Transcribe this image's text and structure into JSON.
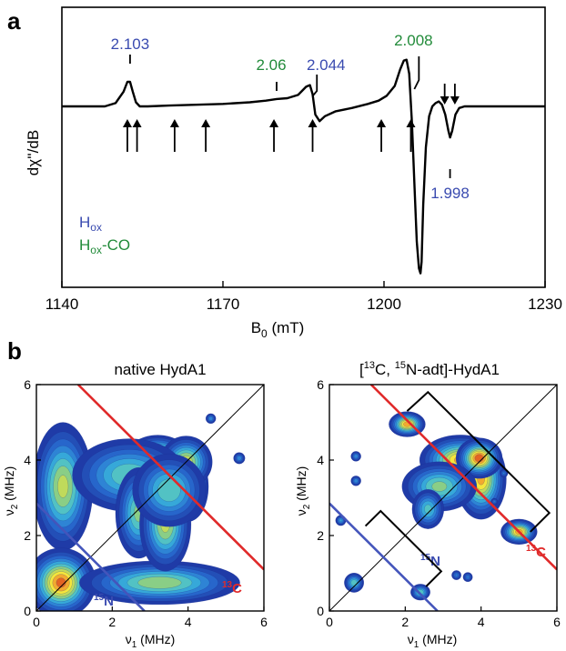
{
  "chart_data": [
    {
      "panel": "a",
      "type": "line",
      "xlabel": "B",
      "xlabel_sub": "0",
      "xlabel_unit": " (mT)",
      "ylabel": "dχ''/dB",
      "xlim": [
        1140,
        1230
      ],
      "xticks": [
        1140,
        1170,
        1200,
        1230
      ],
      "series": [
        {
          "x": [
            1140,
            1148,
            1150,
            1151.5,
            1152.2,
            1152.7,
            1153.2,
            1153.8,
            1154.5,
            1156,
            1160,
            1165,
            1170,
            1175,
            1178,
            1180,
            1182,
            1184,
            1185.5,
            1186.2,
            1186.7,
            1187.2,
            1188,
            1189,
            1191,
            1194,
            1197,
            1199,
            1200.5,
            1202,
            1203,
            1203.7,
            1204.2,
            1204.7,
            1205.2,
            1205.7,
            1206.1,
            1206.5,
            1206.8,
            1207.0,
            1207.3,
            1207.8,
            1208.4,
            1209.0,
            1209.6,
            1210.2,
            1210.8,
            1211.4,
            1212.0,
            1212.3,
            1212.7,
            1213.3,
            1214.0,
            1215,
            1217,
            1220,
            1225,
            1230
          ],
          "y": [
            0,
            0.0,
            0.04,
            0.18,
            0.3,
            0.3,
            0.18,
            0.05,
            0.0,
            0.0,
            0.01,
            0.02,
            0.03,
            0.05,
            0.07,
            0.09,
            0.1,
            0.14,
            0.24,
            0.26,
            0.15,
            -0.1,
            -0.18,
            -0.12,
            -0.06,
            -0.02,
            0.03,
            0.07,
            0.13,
            0.25,
            0.45,
            0.56,
            0.57,
            0.4,
            -0.2,
            -1.0,
            -1.65,
            -1.98,
            -2.04,
            -1.9,
            -1.2,
            -0.5,
            -0.12,
            0.0,
            0.04,
            0.06,
            0.02,
            -0.1,
            -0.3,
            -0.38,
            -0.3,
            -0.1,
            -0.02,
            0.0,
            0.0,
            0.0,
            0.0,
            0.0
          ]
        }
      ],
      "annotations": [
        {
          "text": "2.103",
          "x": 1152.7,
          "color": "#3a4bb0"
        },
        {
          "text": "2.06",
          "x": 1180,
          "color": "#228b3a"
        },
        {
          "text": "2.044",
          "x": 1187.5,
          "color": "#3a4bb0"
        },
        {
          "text": "2.008",
          "x": 1206.5,
          "color": "#228b3a"
        },
        {
          "text": "1.998",
          "x": 1212.3,
          "color": "#3a4bb0"
        }
      ],
      "arrows_x": [
        1152.2,
        1154.0,
        1161.0,
        1166.8,
        1179.5,
        1186.7,
        1199.5,
        1205.0
      ],
      "top_arrows_x": [
        1211.3,
        1213.2
      ],
      "legend": [
        {
          "main": "H",
          "sub": "ox",
          "suffix": "",
          "color": "#3a4bb0"
        },
        {
          "main": "H",
          "sub": "ox",
          "suffix": "-CO",
          "color": "#228b3a"
        }
      ]
    },
    {
      "panel": "b",
      "type": "contour",
      "title": "native HydA1",
      "xlabel": "ν",
      "xlabel_sub": "1",
      "xlabel_unit": " (MHz)",
      "ylabel": "ν",
      "ylabel_sub": "2",
      "ylabel_unit": " (MHz)",
      "xlim": [
        0,
        6
      ],
      "ylim": [
        0,
        6
      ],
      "ticks": [
        0,
        2,
        4,
        6
      ],
      "lines": [
        {
          "label": "13C",
          "color": "#e02a2a",
          "x0": 1.1,
          "y0": 6,
          "x1": 6,
          "y1": 1.1
        },
        {
          "label": "15N",
          "color": "#4455bb",
          "x0": 0,
          "y0": 2.85,
          "x1": 2.85,
          "y1": 0
        }
      ],
      "line_labels": [
        {
          "text_sup": "13",
          "text": "C",
          "color": "#e02a2a"
        },
        {
          "text_sup": "15",
          "text": "N",
          "color": "#3a4bb0"
        }
      ],
      "peaks": [
        {
          "x": 0.7,
          "y": 3.3,
          "sx": 0.35,
          "sy": 0.75,
          "amp": 0.65
        },
        {
          "x": 0.65,
          "y": 0.75,
          "sx": 0.38,
          "sy": 0.38,
          "amp": 0.95
        },
        {
          "x": 3.25,
          "y": 0.75,
          "sx": 0.95,
          "sy": 0.26,
          "amp": 0.6
        },
        {
          "x": 3.2,
          "y": 4.05,
          "sx": 0.35,
          "sy": 0.25,
          "amp": 1.0
        },
        {
          "x": 4.0,
          "y": 3.3,
          "sx": 0.22,
          "sy": 0.38,
          "amp": 1.0
        },
        {
          "x": 3.95,
          "y": 3.95,
          "sx": 0.3,
          "sy": 0.3,
          "amp": 0.7
        },
        {
          "x": 2.45,
          "y": 3.6,
          "sx": 0.7,
          "sy": 0.45,
          "amp": 0.5
        },
        {
          "x": 2.7,
          "y": 2.6,
          "sx": 0.28,
          "sy": 0.55,
          "amp": 0.55
        },
        {
          "x": 3.4,
          "y": 2.3,
          "sx": 0.3,
          "sy": 0.55,
          "amp": 0.65
        },
        {
          "x": 3.5,
          "y": 3.2,
          "sx": 0.45,
          "sy": 0.45,
          "amp": 0.5
        },
        {
          "x": 4.6,
          "y": 5.1,
          "sx": 0.07,
          "sy": 0.07,
          "amp": 0.3
        },
        {
          "x": 5.35,
          "y": 4.05,
          "sx": 0.08,
          "sy": 0.08,
          "amp": 0.3
        }
      ]
    },
    {
      "panel": "b",
      "type": "contour",
      "title_pre": "[",
      "title_sup1": "13",
      "title_mid": "C, ",
      "title_sup2": "15",
      "title_post": "N-adt]-HydA1",
      "xlabel": "ν",
      "xlabel_sub": "1",
      "xlabel_unit": " (MHz)",
      "ylabel": "ν",
      "ylabel_sub": "2",
      "ylabel_unit": " (MHz)",
      "xlim": [
        0,
        6
      ],
      "ylim": [
        0,
        6
      ],
      "ticks": [
        0,
        2,
        4,
        6
      ],
      "lines": [
        {
          "label": "13C",
          "color": "#e02a2a",
          "x0": 1.1,
          "y0": 6,
          "x1": 6,
          "y1": 1.1
        },
        {
          "label": "15N",
          "color": "#4455bb",
          "x0": 0,
          "y0": 2.85,
          "x1": 2.85,
          "y1": 0
        }
      ],
      "line_labels": [
        {
          "text_sup": "13",
          "text": "C",
          "color": "#e02a2a"
        },
        {
          "text_sup": "15",
          "text": "N",
          "color": "#3a4bb0"
        }
      ],
      "peaks": [
        {
          "x": 2.05,
          "y": 4.95,
          "sx": 0.2,
          "sy": 0.14,
          "amp": 0.9
        },
        {
          "x": 5.0,
          "y": 2.1,
          "sx": 0.2,
          "sy": 0.14,
          "amp": 0.9
        },
        {
          "x": 3.45,
          "y": 4.0,
          "sx": 0.45,
          "sy": 0.28,
          "amp": 0.85
        },
        {
          "x": 4.0,
          "y": 3.5,
          "sx": 0.28,
          "sy": 0.45,
          "amp": 0.85
        },
        {
          "x": 3.95,
          "y": 4.05,
          "sx": 0.25,
          "sy": 0.22,
          "amp": 1.0
        },
        {
          "x": 2.9,
          "y": 3.3,
          "sx": 0.45,
          "sy": 0.3,
          "amp": 0.55
        },
        {
          "x": 2.6,
          "y": 2.7,
          "sx": 0.2,
          "sy": 0.25,
          "amp": 0.45
        },
        {
          "x": 0.7,
          "y": 4.1,
          "sx": 0.07,
          "sy": 0.07,
          "amp": 0.3
        },
        {
          "x": 0.7,
          "y": 3.45,
          "sx": 0.07,
          "sy": 0.07,
          "amp": 0.3
        },
        {
          "x": 0.3,
          "y": 2.4,
          "sx": 0.07,
          "sy": 0.07,
          "amp": 0.35
        },
        {
          "x": 0.65,
          "y": 0.75,
          "sx": 0.12,
          "sy": 0.12,
          "amp": 0.5
        },
        {
          "x": 2.4,
          "y": 0.5,
          "sx": 0.12,
          "sy": 0.1,
          "amp": 0.5
        },
        {
          "x": 4.35,
          "y": 2.9,
          "sx": 0.05,
          "sy": 0.05,
          "amp": 0.25
        },
        {
          "x": 4.6,
          "y": 3.65,
          "sx": 0.06,
          "sy": 0.06,
          "amp": 0.25
        },
        {
          "x": 3.35,
          "y": 0.95,
          "sx": 0.07,
          "sy": 0.07,
          "amp": 0.25
        },
        {
          "x": 3.65,
          "y": 0.9,
          "sx": 0.07,
          "sy": 0.07,
          "amp": 0.25
        }
      ]
    }
  ]
}
